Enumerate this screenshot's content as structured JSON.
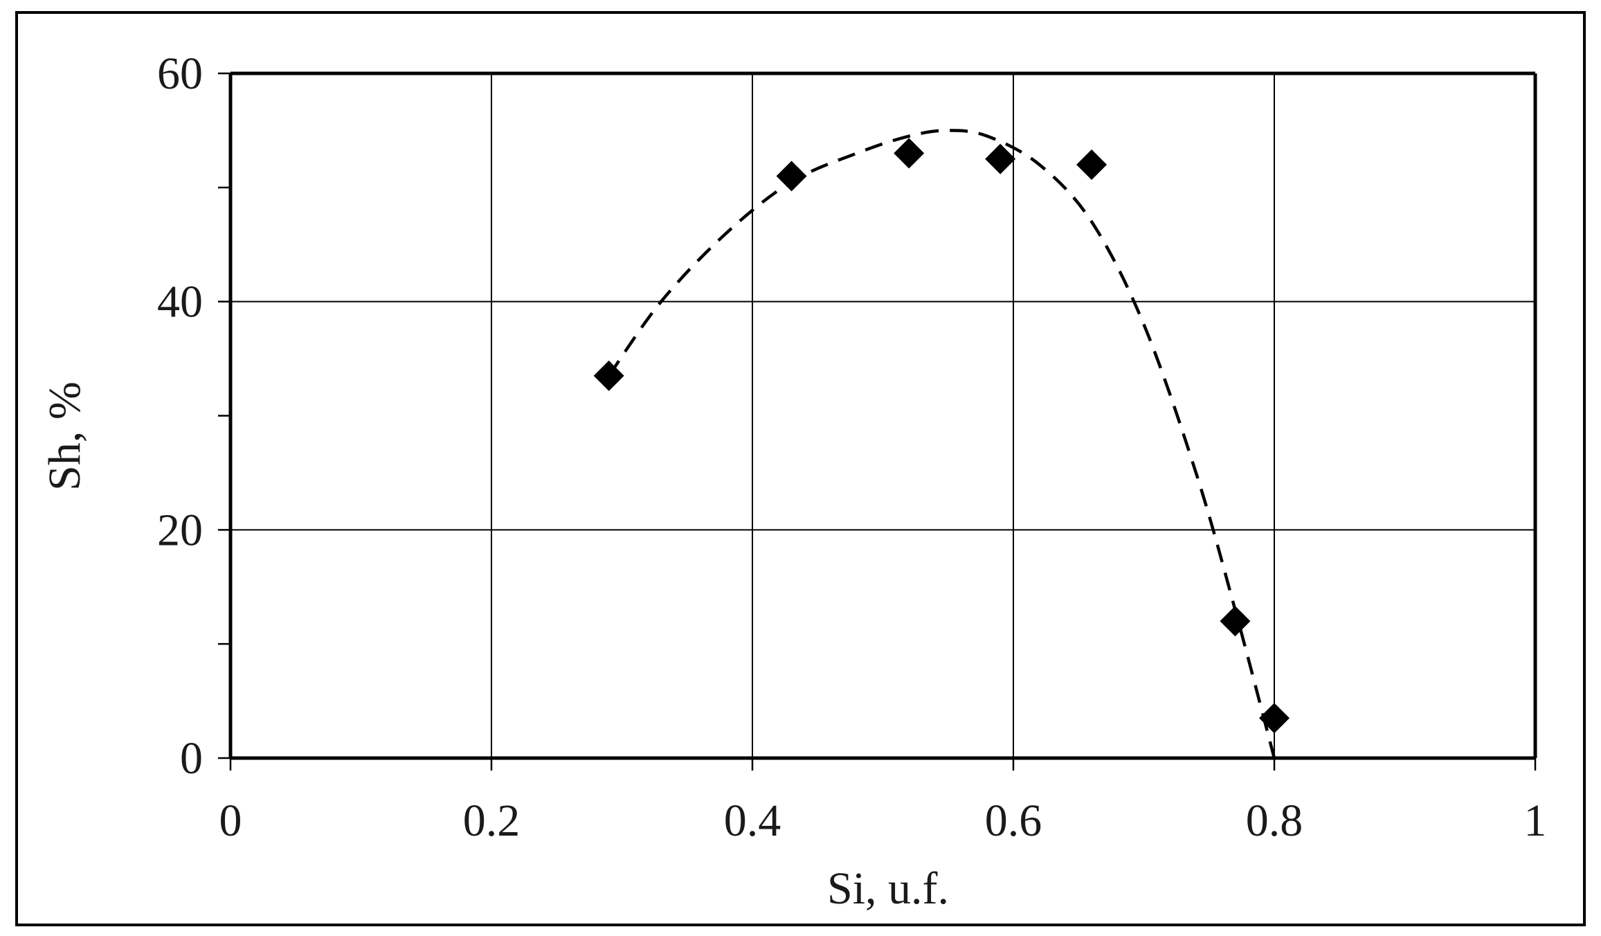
{
  "chart_data": {
    "type": "scatter",
    "title": "",
    "xlabel": "Si, u.f.",
    "ylabel": "Sh, %",
    "xlim": [
      0,
      1
    ],
    "ylim": [
      0,
      60
    ],
    "x_ticks": [
      0,
      0.2,
      0.4,
      0.6,
      0.8,
      1
    ],
    "x_tick_labels": [
      "0",
      "0.2",
      "0.4",
      "0.6",
      "0.8",
      "1"
    ],
    "y_ticks": [
      0,
      20,
      40,
      60
    ],
    "y_tick_labels": [
      "0",
      "20",
      "40",
      "60"
    ],
    "y_minor_ticks": [
      10,
      30,
      50
    ],
    "grid": true,
    "legend": "none",
    "series": [
      {
        "style": "markers",
        "marker": "diamond",
        "color": "#000000",
        "x": [
          0.29,
          0.43,
          0.52,
          0.59,
          0.66,
          0.77,
          0.8
        ],
        "y": [
          33.5,
          51,
          53,
          52.5,
          52,
          12,
          3.5
        ]
      },
      {
        "style": "dashed-line",
        "color": "#000000",
        "x": [
          0.29,
          0.33,
          0.38,
          0.43,
          0.48,
          0.52,
          0.55,
          0.58,
          0.62,
          0.66,
          0.7,
          0.74,
          0.77,
          0.8
        ],
        "y": [
          33.5,
          40,
          46,
          50.5,
          53,
          54.5,
          55,
          54.5,
          52,
          47,
          38,
          25,
          13,
          0
        ]
      }
    ]
  }
}
